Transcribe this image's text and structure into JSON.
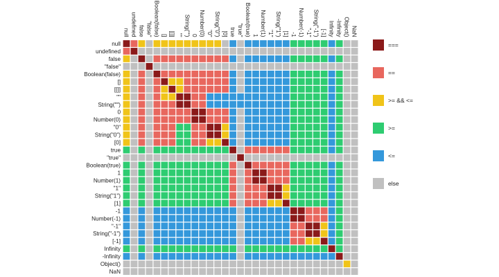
{
  "chart_data": {
    "type": "heatmap",
    "title": "",
    "xlabel": "",
    "ylabel": "",
    "labels": [
      "null",
      "undefined",
      "false",
      "\"false\"",
      "Boolean(false)",
      "[]",
      "[[]]",
      "\"\"",
      "String(\"\")",
      "0",
      "Number(0)",
      "\"0\"",
      "String(\"0\")",
      "[0]",
      "true",
      "\"true\"",
      "Boolean(true)",
      "1",
      "Number(1)",
      "\"1\"",
      "String(\"1\")",
      "[1]",
      "-1",
      "Number(-1)",
      "\"-1\"",
      "String(\"-1\")",
      "[-1]",
      "Infinity",
      "-Infinity",
      "Object()",
      "NaN"
    ],
    "col_labels": [
      "null",
      "undefined",
      "false",
      "\"false\"",
      "Boolean(false)",
      "[]",
      "[[]]",
      "\"\"",
      "String(\"\")",
      "0",
      "Number(0)",
      "\"0\"",
      "String(\"0\")",
      "[0]",
      "true",
      "\"true\"",
      "Boolean(true)",
      "1",
      "Number(1)",
      "\"1\"",
      "String(\"1\")",
      "[1]",
      "-1",
      "Number(-1)",
      "\"-1\"",
      "String(\"-1\")",
      "[-1]",
      "Infinity",
      "-Infinity",
      "Object()",
      "NaN"
    ],
    "legend": [
      {
        "key": "S",
        "label": "===",
        "color": "#8b1a1a"
      },
      {
        "key": "E",
        "label": "==",
        "color": "#e8675e"
      },
      {
        "key": "Y",
        "label": ">= && <=",
        "color": "#f0c419"
      },
      {
        "key": "G",
        "label": ">=",
        "color": "#2ecc71"
      },
      {
        "key": "B",
        "label": "<=",
        "color": "#3498db"
      },
      {
        "key": "X",
        "label": "else",
        "color": "#c0c0c0"
      }
    ],
    "matrix": [
      "SEYXYYYYYYYYYXBXBBBBBBGGGGGBGXX",
      "ESXXXXXXXXXXXXXXXXXXXXXXXXXXXXX",
      "YXSXEEEEEEEEEEBXBBBBBBGGGGGBGXX",
      "XXXSXXXXXXXXXXXXXXXXXXXXXXXXXXX",
      "YXEXSEEEEEEEEEBXBBBBBBGGGGGBGXX",
      "YXEXESYYEEEEEEBXBBBBBBGGGGGBGXX",
      "YXEXEYSYEEEEEEBXBBBBBBGGGGGBGXX",
      "YXEXEYYSSEEBBBBBBBBBBBGGGGGBGXX",
      "YXEXEEESSEEBBBBBBBBBBBGGGGGBGXX",
      "YXEXEEEEESSEEEBXBBBBBBGGGGGBGXX",
      "YXEXEEEEESSEEEBXBBBBBBGGGGGBGXX",
      "YXEXEEEGGEESSYBXBBBBBBGGGGGBGXX",
      "YXEXEEEGGEESSYBXBBBBBBGGGGGBGXX",
      "YXEXEEEGGEEYYSBXBBBBBBGGGGGBGXX",
      "GXGXGGGGGGGGGGSXEEEEEEGGGGGBGXX",
      "XXXXXXXXXXXXXXXSXXXXXXXXXXXXXXX",
      "GXGXGGGGGGGGGGEXSEEEEEGGGGGBGXX",
      "GXGXGGGGGGGGGGEXESSEEEGGGGGBGXX",
      "GXGXGGGGGGGGGGEXESSEEEGGGGGBGXX",
      "GXGXGGGGGGGGGGEXEEESSYGGGGGBGXX",
      "GXGXGGGGGGGGGGEXEEESSYGGGGGBGXX",
      "GXGXGGGGGGGGGGEXEEEYYSGGGGGBGXX",
      "BXBXBBBBBBBBBBBXBBBBBBSSEEEBGXX",
      "BXBXBBBBBBBBBBBXBBBBBBSSEEEBGXX",
      "BXBXBBBBBBBBBBBXBBBBBBEESSYBGXX",
      "BXBXBBBBBBBBBBBXBBBBBBEESSYBGXX",
      "BXBXBBBBBBBBBBBXBBBBBBEEYYSBGXX",
      "GXGXGGGGGGGGGGGXGGGGGGGGGGGSGXX",
      "BXBXBBBBBBBBBBBXBBBBBBBBBBBBSXX",
      "XXXXXXXXXXXXXXXXXXXXXXXXXXXXXYX",
      "XXXXXXXXXXXXXXXXXXXXXXXXXXXXXXX"
    ]
  }
}
